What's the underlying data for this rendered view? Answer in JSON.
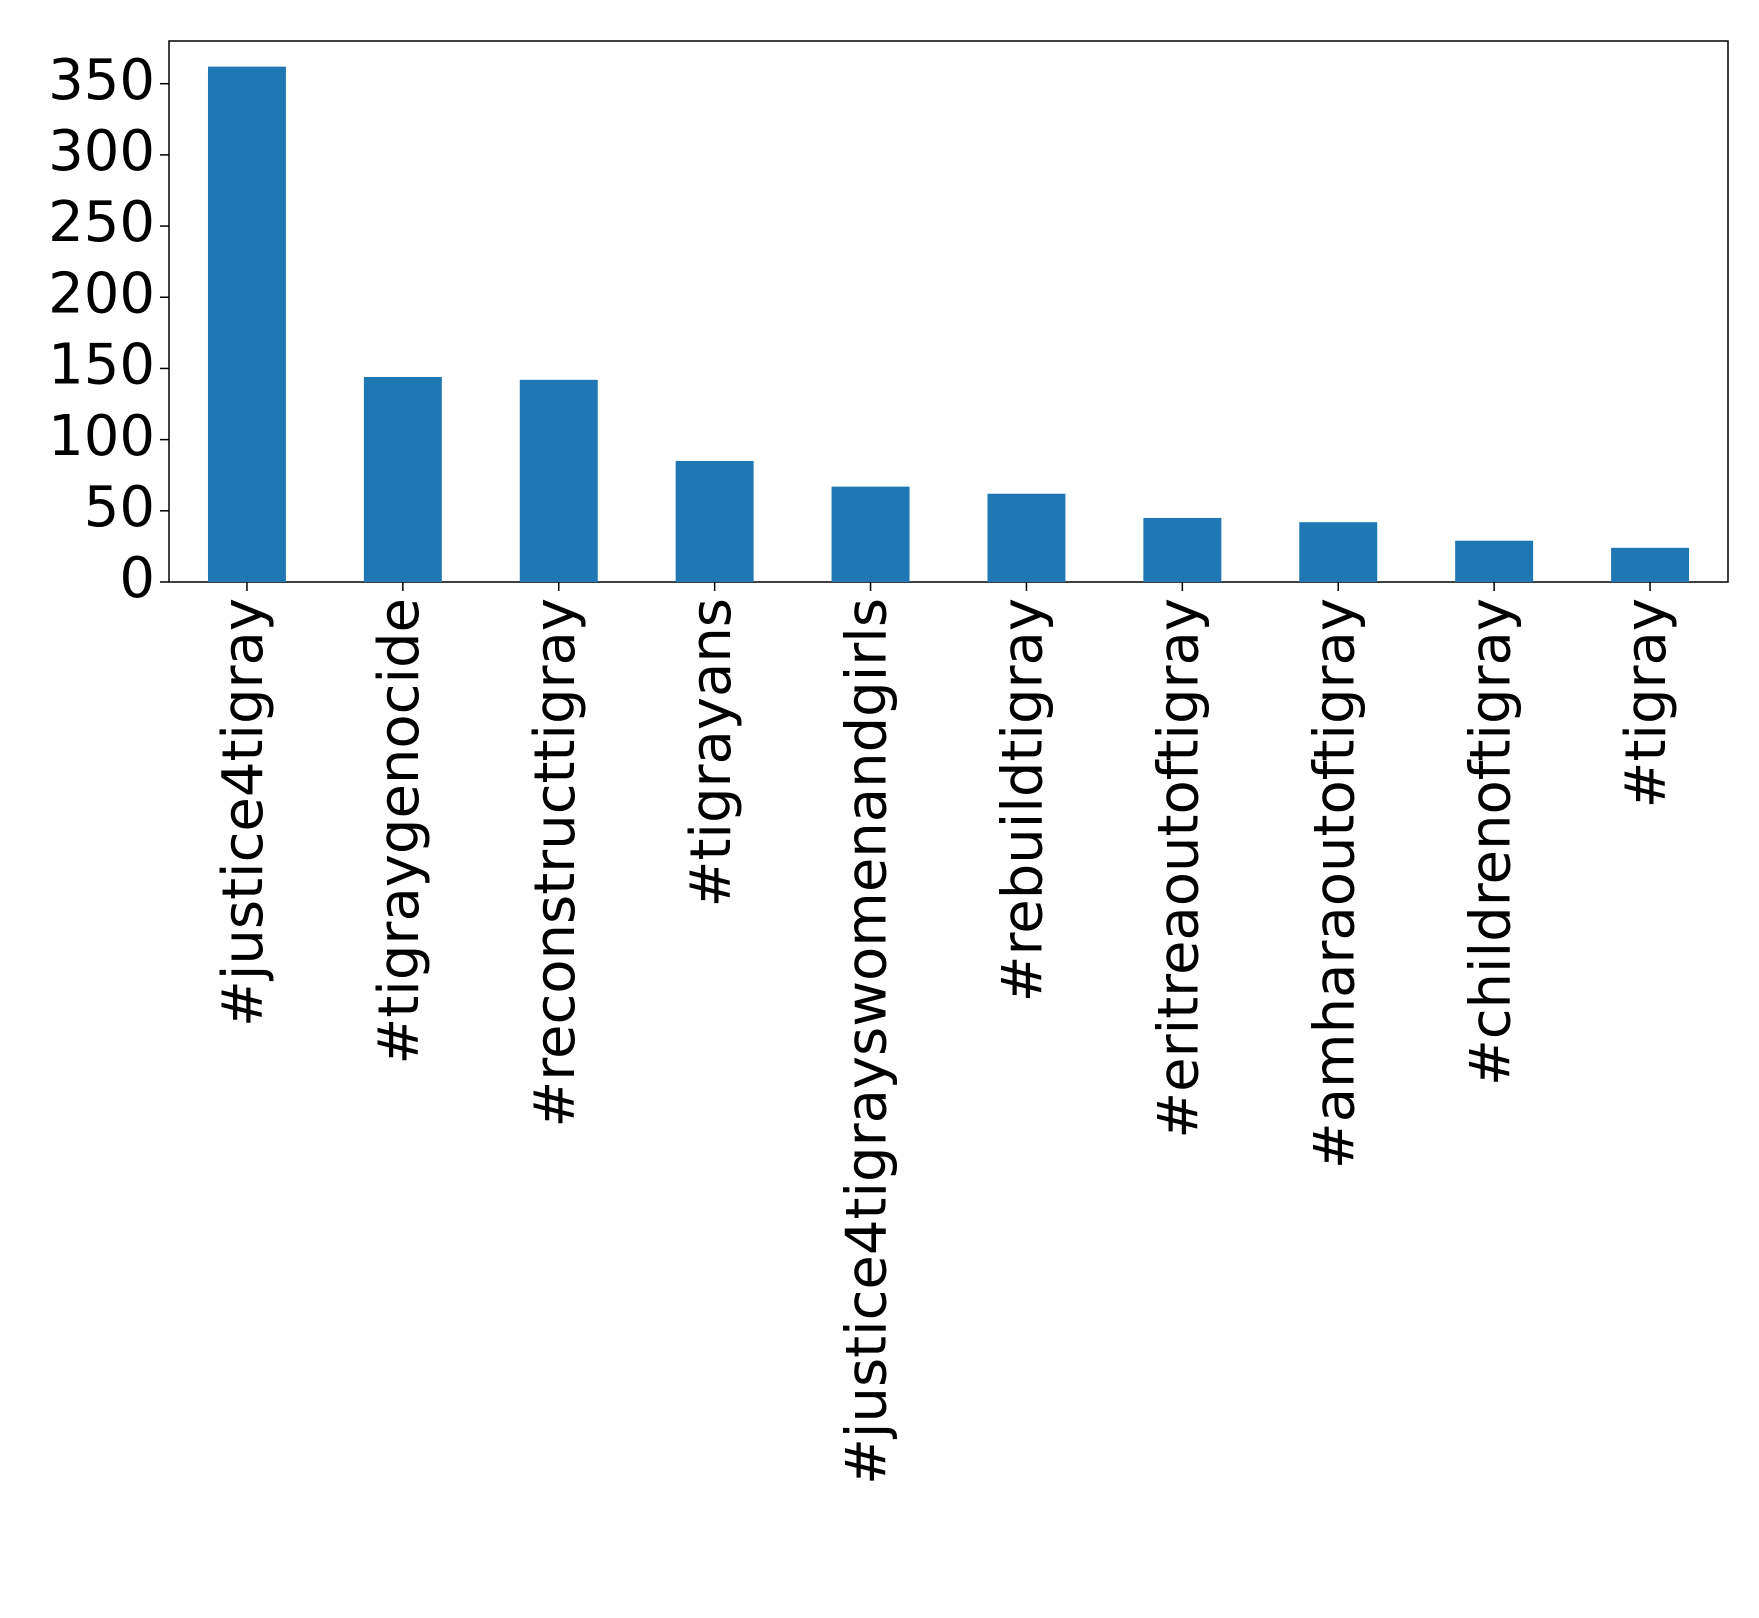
{
  "chart_data": {
    "type": "bar",
    "categories": [
      "#justice4tigray",
      "#tigraygenocide",
      "#reconstructtigray",
      "#tigrayans",
      "#justice4tigrayswomenandgirls",
      "#rebuildtigray",
      "#eritreaoutoftigray",
      "#amharaoutoftigray",
      "#childrenoftigray",
      "#tigray"
    ],
    "values": [
      362,
      144,
      142,
      85,
      67,
      62,
      45,
      42,
      29,
      24
    ],
    "color": "#1f77b4",
    "ylim": [
      0,
      380
    ],
    "yticks": [
      0,
      50,
      100,
      150,
      200,
      250,
      300,
      350
    ],
    "grid": false
  }
}
